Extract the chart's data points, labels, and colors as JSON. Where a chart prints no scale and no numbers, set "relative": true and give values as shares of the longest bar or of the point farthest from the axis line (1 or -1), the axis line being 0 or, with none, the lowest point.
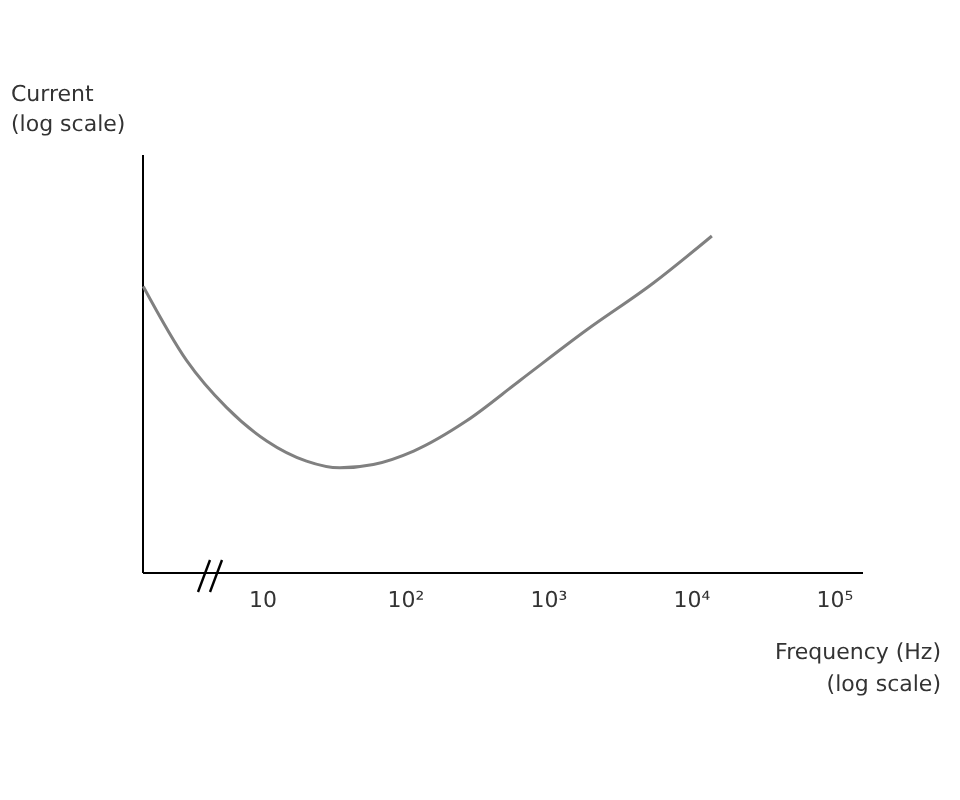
{
  "chart_data": {
    "type": "line",
    "relative": true,
    "log": "x",
    "xlabel": "Frequency (Hz)\n(log scale)",
    "ylabel": "Current\n(log scale)",
    "xlim": [
      1.45,
      157000
    ],
    "xticks": [
      10,
      {
        "value": 100,
        "label": "10²"
      },
      {
        "value": 1000,
        "label": "10³"
      },
      {
        "value": 10000,
        "label": "10⁴"
      },
      {
        "value": 100000,
        "label": "10⁵"
      }
    ],
    "series": [
      {
        "color": "#808080",
        "x": [
          1.48,
          2.97,
          5.65,
          10.8,
          20.5,
          35.1,
          60.1,
          115,
          270,
          637,
          1860,
          5460,
          14000
        ],
        "values": [
          0.85,
          0.63,
          0.49,
          0.39,
          0.33,
          0.31,
          0.32,
          0.36,
          0.45,
          0.57,
          0.72,
          0.86,
          1.0
        ]
      }
    ]
  }
}
